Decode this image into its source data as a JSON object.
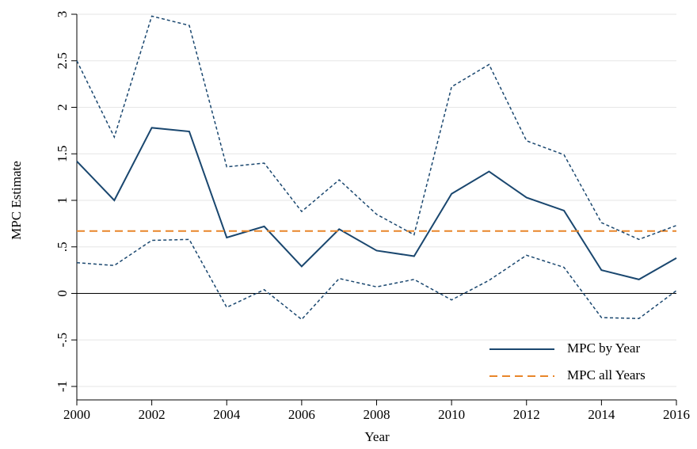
{
  "chart_data": {
    "type": "line",
    "x_label": "Year",
    "y_label": "MPC Estimate",
    "x": [
      2000,
      2001,
      2002,
      2003,
      2004,
      2005,
      2006,
      2007,
      2008,
      2009,
      2010,
      2011,
      2012,
      2013,
      2014,
      2015,
      2016
    ],
    "series": [
      {
        "name": "MPC by Year",
        "color": "#1a476f",
        "dash": false,
        "values": [
          1.42,
          1.0,
          1.78,
          1.74,
          0.6,
          0.72,
          0.29,
          0.69,
          0.46,
          0.4,
          1.07,
          1.31,
          1.03,
          0.89,
          0.25,
          0.15,
          0.38
        ]
      },
      {
        "name": "MPC all Years",
        "color": "#e8862a",
        "dash": true,
        "values": [
          0.67,
          0.67,
          0.67,
          0.67,
          0.67,
          0.67,
          0.67,
          0.67,
          0.67,
          0.67,
          0.67,
          0.67,
          0.67,
          0.67,
          0.67,
          0.67,
          0.67
        ]
      },
      {
        "color": "#1a476f",
        "dash": true,
        "values": [
          2.5,
          1.68,
          2.98,
          2.88,
          1.36,
          1.4,
          0.88,
          1.22,
          0.85,
          0.63,
          2.22,
          2.46,
          1.64,
          1.49,
          0.76,
          0.58,
          0.73
        ]
      },
      {
        "color": "#1a476f",
        "dash": true,
        "values": [
          0.33,
          0.3,
          0.57,
          0.58,
          -0.15,
          0.04,
          -0.28,
          0.16,
          0.07,
          0.15,
          -0.07,
          0.14,
          0.41,
          0.28,
          -0.26,
          -0.27,
          0.03
        ]
      }
    ],
    "xlim": [
      2000,
      2016
    ],
    "xticks": [
      2000,
      2002,
      2004,
      2006,
      2008,
      2010,
      2012,
      2014,
      2016
    ],
    "ylim": [
      -1,
      3
    ],
    "yticks": [
      -1,
      {
        "value": -0.5,
        "label": "-.5"
      },
      0,
      {
        "value": 0.5,
        "label": ".5"
      },
      1,
      1.5,
      2,
      2.5,
      3
    ],
    "grid": true,
    "legend": "lower right"
  }
}
